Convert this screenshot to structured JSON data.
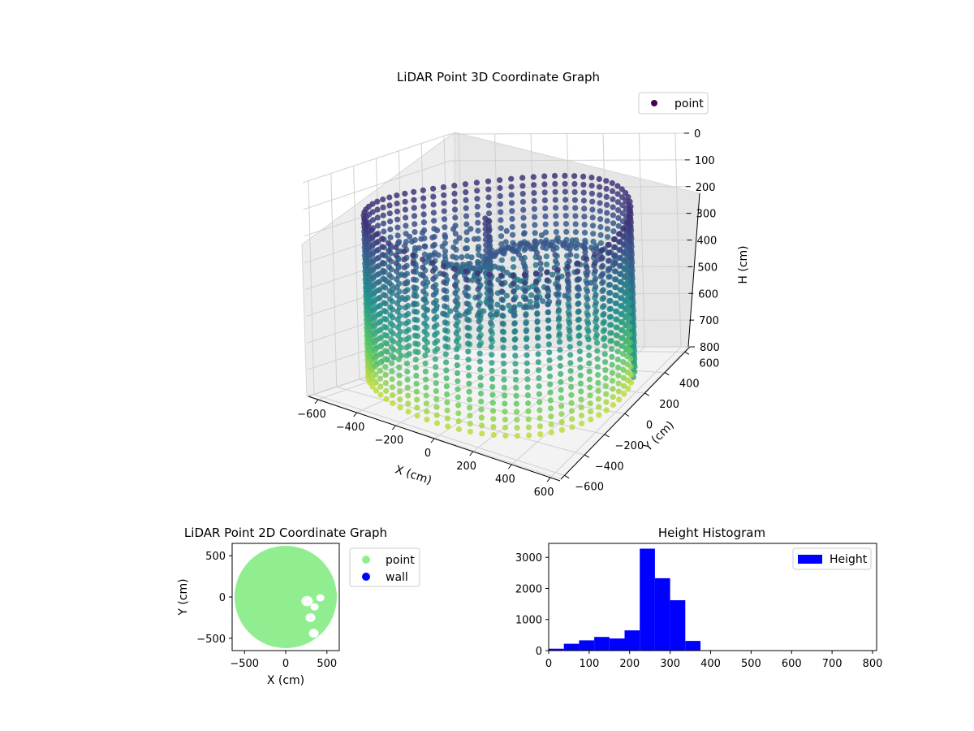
{
  "chart_data": [
    {
      "type": "scatter",
      "projection": "3d",
      "title": "LiDAR Point 3D Coordinate Graph",
      "xlabel": "X (cm)",
      "ylabel": "Y (cm)",
      "zlabel": "H (cm)",
      "xlim": [
        -650,
        650
      ],
      "ylim": [
        -650,
        650
      ],
      "zlim": [
        0,
        800
      ],
      "z_inverted": true,
      "xticks": [
        -600,
        -400,
        -200,
        0,
        200,
        400,
        600
      ],
      "yticks": [
        -600,
        -400,
        -200,
        0,
        200,
        400,
        600
      ],
      "zticks": [
        0,
        100,
        200,
        300,
        400,
        500,
        600,
        700,
        800
      ],
      "legend": {
        "placement": "top-right",
        "entries": [
          "point"
        ]
      },
      "colormap": "viridis",
      "grid": true,
      "series": [
        {
          "name": "point",
          "color": "#440154",
          "shape": "cylindrical wall",
          "radius": 620,
          "h_range": [
            150,
            750
          ]
        }
      ]
    },
    {
      "type": "scatter",
      "title": "LiDAR Point 2D Coordinate Graph",
      "xlabel": "X (cm)",
      "ylabel": "Y (cm)",
      "xlim": [
        -650,
        650
      ],
      "ylim": [
        -650,
        650
      ],
      "xticks": [
        -500,
        0,
        500
      ],
      "yticks": [
        -500,
        0,
        500
      ],
      "legend": {
        "placement": "outside-right",
        "entries": [
          "point",
          "wall"
        ]
      },
      "grid": false,
      "series": [
        {
          "name": "point",
          "color": "#90ee90",
          "shape": "filled disc",
          "radius": 620
        },
        {
          "name": "wall",
          "color": "#0000ff"
        }
      ]
    },
    {
      "type": "bar",
      "subtype": "histogram",
      "title": "Height Histogram",
      "xlabel": "",
      "ylabel": "",
      "xlim": [
        0,
        810
      ],
      "ylim": [
        0,
        3450
      ],
      "xticks": [
        0,
        100,
        200,
        300,
        400,
        500,
        600,
        700,
        800
      ],
      "yticks": [
        0,
        1000,
        2000,
        3000
      ],
      "legend": {
        "placement": "top-right",
        "entries": [
          "Height"
        ]
      },
      "grid": false,
      "bin_width": 37.5,
      "bin_edges": [
        0,
        37.5,
        75,
        112.5,
        150,
        187.5,
        225,
        262.5,
        300,
        337.5,
        375
      ],
      "series": [
        {
          "name": "Height",
          "color": "#0000ff",
          "values": [
            60,
            220,
            330,
            440,
            390,
            650,
            3280,
            2330,
            1620,
            310
          ]
        }
      ]
    }
  ]
}
